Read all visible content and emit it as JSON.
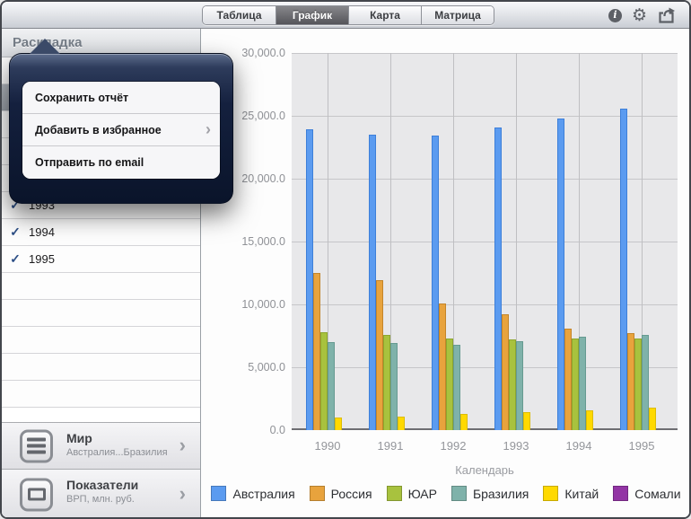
{
  "toolbar": {
    "tabs": [
      {
        "label": "Таблица",
        "selected": false
      },
      {
        "label": "График",
        "selected": true
      },
      {
        "label": "Карта",
        "selected": false
      },
      {
        "label": "Матрица",
        "selected": false
      }
    ],
    "info_icon": "i",
    "gear_icon": "⚙",
    "share_icon": "share-arrow"
  },
  "sidebar": {
    "header": "Раскладка",
    "rows": [
      {
        "label": "",
        "checked": false,
        "selected": false
      },
      {
        "label": "",
        "checked": false,
        "selected": true
      },
      {
        "label": "",
        "checked": false,
        "selected": false
      },
      {
        "label": "",
        "checked": false,
        "selected": false
      },
      {
        "label": "",
        "checked": false,
        "selected": false
      },
      {
        "label": "1993",
        "checked": true,
        "selected": false
      },
      {
        "label": "1994",
        "checked": true,
        "selected": false
      },
      {
        "label": "1995",
        "checked": true,
        "selected": false
      },
      {
        "label": "",
        "checked": false,
        "selected": false
      },
      {
        "label": "",
        "checked": false,
        "selected": false
      },
      {
        "label": "",
        "checked": false,
        "selected": false
      },
      {
        "label": "",
        "checked": false,
        "selected": false
      },
      {
        "label": "",
        "checked": false,
        "selected": false
      }
    ],
    "check_glyph": "✓",
    "cells": [
      {
        "title": "Мир",
        "subtitle": "Австралия...Бразилия",
        "icon": "list-icon",
        "chevron": "›"
      },
      {
        "title": "Показатели",
        "subtitle": "ВРП, млн. руб.",
        "icon": "square-icon",
        "chevron": "›"
      }
    ]
  },
  "popover": {
    "items": [
      {
        "label": "Сохранить отчёт",
        "chevron": false
      },
      {
        "label": "Добавить в избранное",
        "chevron": true
      },
      {
        "label": "Отправить по email",
        "chevron": false
      }
    ],
    "chevron_glyph": "›"
  },
  "chart_data": {
    "type": "bar",
    "categories": [
      "1990",
      "1991",
      "1992",
      "1993",
      "1994",
      "1995"
    ],
    "series": [
      {
        "name": "Австралия",
        "color": "#5b9bf0",
        "border": "#3d7fd9",
        "values": [
          23900,
          23500,
          23400,
          24100,
          24800,
          25600
        ]
      },
      {
        "name": "Россия",
        "color": "#e8a33d",
        "border": "#c4852a",
        "values": [
          12500,
          11900,
          10100,
          9200,
          8100,
          7700
        ]
      },
      {
        "name": "ЮАР",
        "color": "#a8c23e",
        "border": "#8da62e",
        "values": [
          7800,
          7600,
          7300,
          7200,
          7300,
          7300
        ]
      },
      {
        "name": "Бразилия",
        "color": "#7fb2aa",
        "border": "#669a91",
        "values": [
          7000,
          6900,
          6800,
          7100,
          7400,
          7600
        ]
      },
      {
        "name": "Китай",
        "color": "#ffd900",
        "border": "#ddbc00",
        "values": [
          1000,
          1100,
          1300,
          1400,
          1600,
          1800
        ]
      },
      {
        "name": "Сомали",
        "color": "#9335a5",
        "border": "#76258a",
        "values": [
          0,
          0,
          0,
          0,
          0,
          0
        ]
      }
    ],
    "xlabel": "Календарь",
    "ylabel": "",
    "ylim": [
      0,
      30000
    ],
    "ytick_step": 5000,
    "ytick_labels_topdown": [
      "30,000.0",
      "25,000.0",
      "20,000.0",
      "15,000.0",
      "10,000.0",
      "5,000.0",
      "0.0"
    ],
    "grid": true,
    "legend_position": "bottom"
  }
}
